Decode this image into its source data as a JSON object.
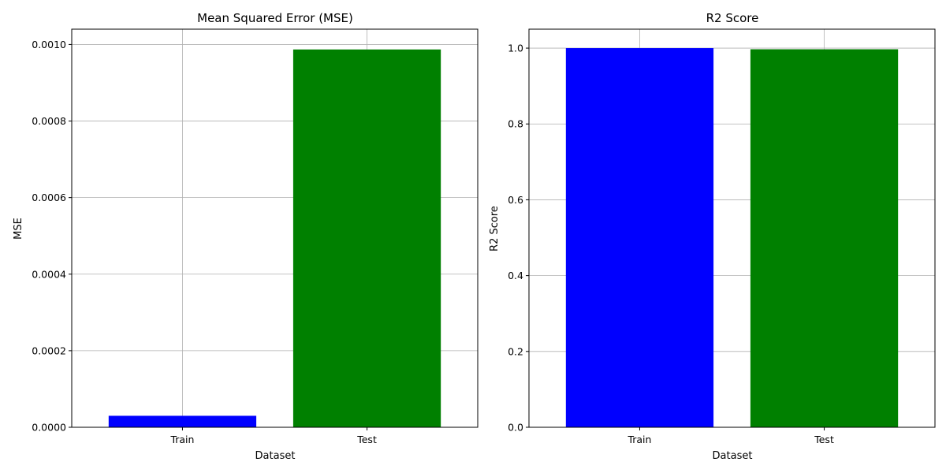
{
  "colors": {
    "train": "#0000ff",
    "test": "#008000",
    "grid": "#b0b0b0",
    "axis": "#000000",
    "background": "#ffffff"
  },
  "chart_data": [
    {
      "type": "bar",
      "title": "Mean Squared Error (MSE)",
      "xlabel": "Dataset",
      "ylabel": "MSE",
      "categories": [
        "Train",
        "Test"
      ],
      "values": [
        3e-05,
        0.000987
      ],
      "bar_colors": [
        "#0000ff",
        "#008000"
      ],
      "ylim": [
        0,
        0.00104
      ],
      "yticks": [
        0,
        0.0002,
        0.0004,
        0.0006,
        0.0008,
        0.001
      ],
      "ytick_labels": [
        "0.0000",
        "0.0002",
        "0.0004",
        "0.0006",
        "0.0008",
        "0.0010"
      ],
      "grid": true,
      "legend": "none"
    },
    {
      "type": "bar",
      "title": "R2 Score",
      "xlabel": "Dataset",
      "ylabel": "R2 Score",
      "categories": [
        "Train",
        "Test"
      ],
      "values": [
        0.99997,
        0.997
      ],
      "bar_colors": [
        "#0000ff",
        "#008000"
      ],
      "ylim": [
        0,
        1.05
      ],
      "yticks": [
        0,
        0.2,
        0.4,
        0.6,
        0.8,
        1.0
      ],
      "ytick_labels": [
        "0.0",
        "0.2",
        "0.4",
        "0.6",
        "0.8",
        "1.0"
      ],
      "grid": true,
      "legend": "none"
    }
  ]
}
